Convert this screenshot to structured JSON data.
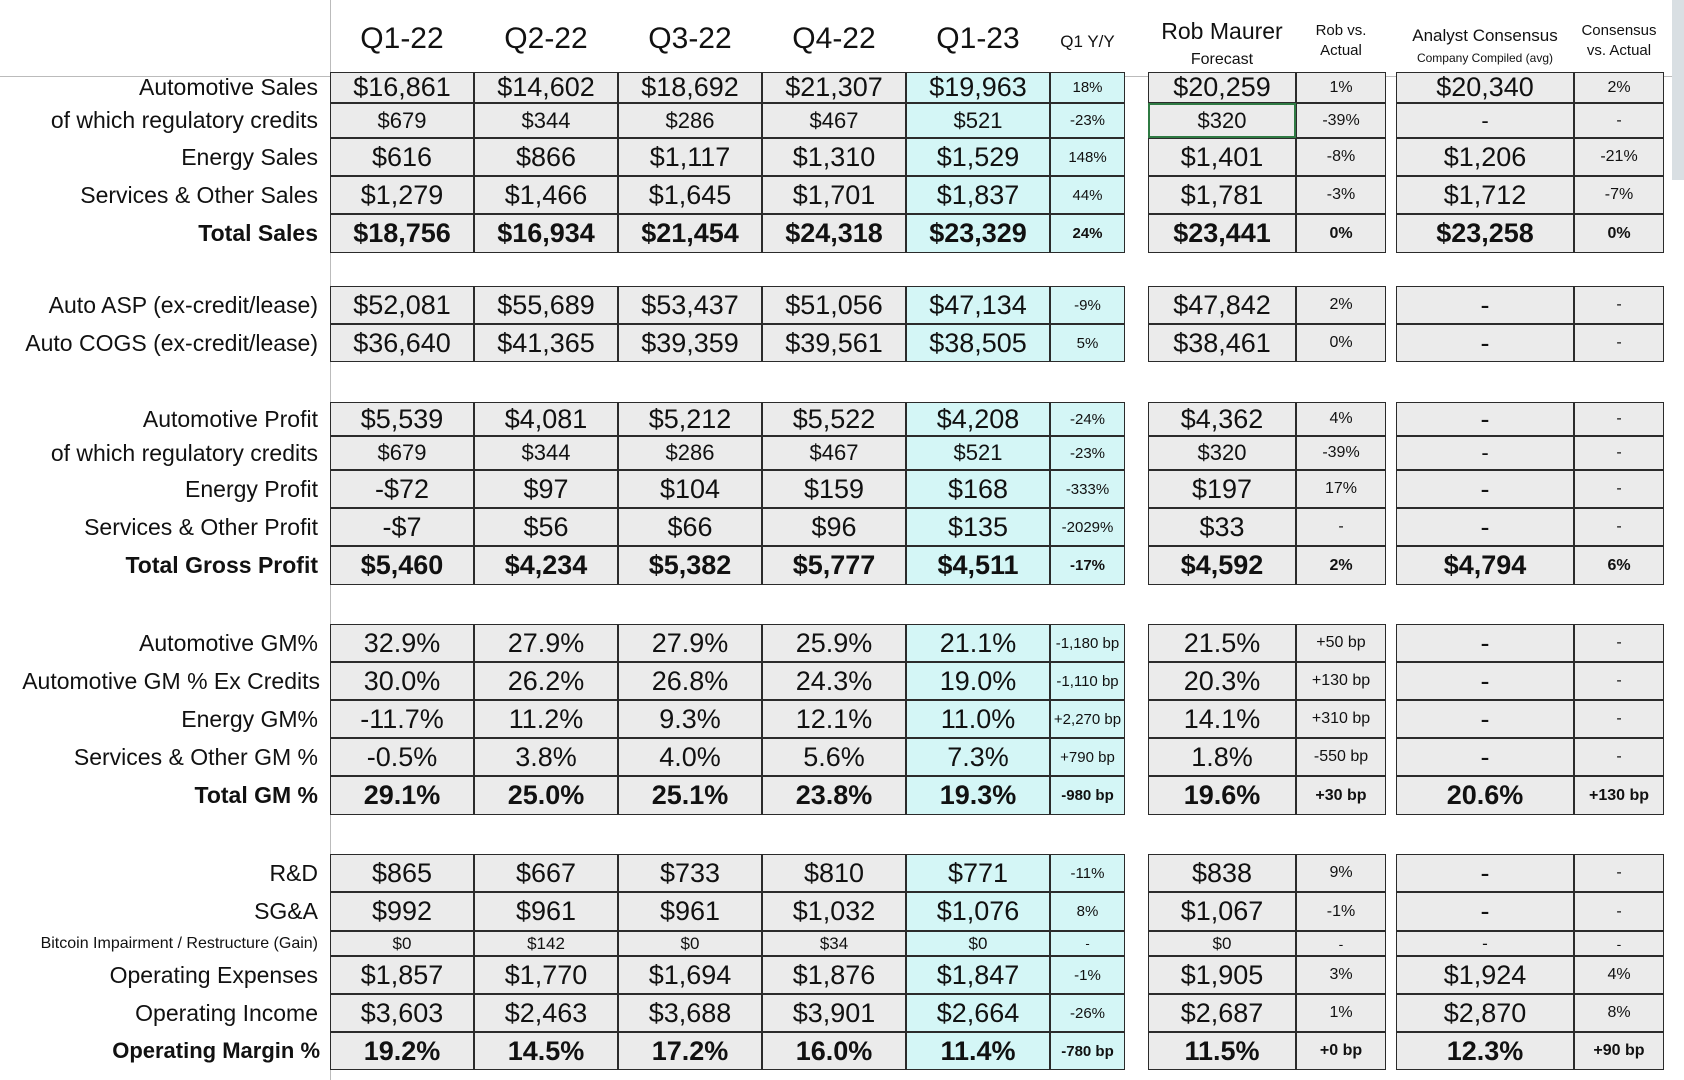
{
  "header": {
    "quarters": [
      "Q1-22",
      "Q2-22",
      "Q3-22",
      "Q4-22",
      "Q1-23"
    ],
    "yoy": "Q1 Y/Y",
    "forecast_name": "Rob Maurer",
    "forecast_sub": "Forecast",
    "rob_vs_1": "Rob vs.",
    "rob_vs_2": "Actual",
    "consensus_title": "Analyst Consensus",
    "consensus_sub": "Company Compiled (avg)",
    "cons_vs_1": "Consensus",
    "cons_vs_2": "vs. Actual"
  },
  "rows": [
    {
      "label": "Automotive Sales",
      "q": [
        "$16,861",
        "$14,602",
        "$18,692",
        "$21,307",
        "$19,963"
      ],
      "yoy": "18%",
      "rob": "$20,259",
      "robvs": "1%",
      "cons": "$20,340",
      "consvs": "2%"
    },
    {
      "label": "of which regulatory credits",
      "q": [
        "$679",
        "$344",
        "$286",
        "$467",
        "$521"
      ],
      "yoy": "-23%",
      "rob": "$320",
      "robvs": "-39%",
      "cons": "-",
      "consvs": "-"
    },
    {
      "label": "Energy Sales",
      "q": [
        "$616",
        "$866",
        "$1,117",
        "$1,310",
        "$1,529"
      ],
      "yoy": "148%",
      "rob": "$1,401",
      "robvs": "-8%",
      "cons": "$1,206",
      "consvs": "-21%"
    },
    {
      "label": "Services & Other Sales",
      "q": [
        "$1,279",
        "$1,466",
        "$1,645",
        "$1,701",
        "$1,837"
      ],
      "yoy": "44%",
      "rob": "$1,781",
      "robvs": "-3%",
      "cons": "$1,712",
      "consvs": "-7%"
    },
    {
      "label": "Total Sales",
      "q": [
        "$18,756",
        "$16,934",
        "$21,454",
        "$24,318",
        "$23,329"
      ],
      "yoy": "24%",
      "rob": "$23,441",
      "robvs": "0%",
      "cons": "$23,258",
      "consvs": "0%"
    },
    {
      "label": "Auto ASP (ex-credit/lease)",
      "q": [
        "$52,081",
        "$55,689",
        "$53,437",
        "$51,056",
        "$47,134"
      ],
      "yoy": "-9%",
      "rob": "$47,842",
      "robvs": "2%",
      "cons": "-",
      "consvs": "-"
    },
    {
      "label": "Auto COGS (ex-credit/lease)",
      "q": [
        "$36,640",
        "$41,365",
        "$39,359",
        "$39,561",
        "$38,505"
      ],
      "yoy": "5%",
      "rob": "$38,461",
      "robvs": "0%",
      "cons": "-",
      "consvs": "-"
    },
    {
      "label": "Automotive Profit",
      "q": [
        "$5,539",
        "$4,081",
        "$5,212",
        "$5,522",
        "$4,208"
      ],
      "yoy": "-24%",
      "rob": "$4,362",
      "robvs": "4%",
      "cons": "-",
      "consvs": "-"
    },
    {
      "label": "of which regulatory credits",
      "q": [
        "$679",
        "$344",
        "$286",
        "$467",
        "$521"
      ],
      "yoy": "-23%",
      "rob": "$320",
      "robvs": "-39%",
      "cons": "-",
      "consvs": "-"
    },
    {
      "label": "Energy Profit",
      "q": [
        "-$72",
        "$97",
        "$104",
        "$159",
        "$168"
      ],
      "yoy": "-333%",
      "rob": "$197",
      "robvs": "17%",
      "cons": "-",
      "consvs": "-"
    },
    {
      "label": "Services & Other Profit",
      "q": [
        "-$7",
        "$56",
        "$66",
        "$96",
        "$135"
      ],
      "yoy": "-2029%",
      "rob": "$33",
      "robvs": "-",
      "cons": "-",
      "consvs": "-"
    },
    {
      "label": "Total Gross Profit",
      "q": [
        "$5,460",
        "$4,234",
        "$5,382",
        "$5,777",
        "$4,511"
      ],
      "yoy": "-17%",
      "rob": "$4,592",
      "robvs": "2%",
      "cons": "$4,794",
      "consvs": "6%"
    },
    {
      "label": "Automotive GM%",
      "q": [
        "32.9%",
        "27.9%",
        "27.9%",
        "25.9%",
        "21.1%"
      ],
      "yoy": "-1,180 bp",
      "rob": "21.5%",
      "robvs": "+50 bp",
      "cons": "-",
      "consvs": "-"
    },
    {
      "label": "Automotive GM % Ex Credits",
      "q": [
        "30.0%",
        "26.2%",
        "26.8%",
        "24.3%",
        "19.0%"
      ],
      "yoy": "-1,110 bp",
      "rob": "20.3%",
      "robvs": "+130 bp",
      "cons": "-",
      "consvs": "-"
    },
    {
      "label": "Energy GM%",
      "q": [
        "-11.7%",
        "11.2%",
        "9.3%",
        "12.1%",
        "11.0%"
      ],
      "yoy": "+2,270 bp",
      "rob": "14.1%",
      "robvs": "+310 bp",
      "cons": "-",
      "consvs": "-"
    },
    {
      "label": "Services & Other GM %",
      "q": [
        "-0.5%",
        "3.8%",
        "4.0%",
        "5.6%",
        "7.3%"
      ],
      "yoy": "+790 bp",
      "rob": "1.8%",
      "robvs": "-550 bp",
      "cons": "-",
      "consvs": "-"
    },
    {
      "label": "Total GM %",
      "q": [
        "29.1%",
        "25.0%",
        "25.1%",
        "23.8%",
        "19.3%"
      ],
      "yoy": "-980 bp",
      "rob": "19.6%",
      "robvs": "+30 bp",
      "cons": "20.6%",
      "consvs": "+130 bp"
    },
    {
      "label": "R&D",
      "q": [
        "$865",
        "$667",
        "$733",
        "$810",
        "$771"
      ],
      "yoy": "-11%",
      "rob": "$838",
      "robvs": "9%",
      "cons": "-",
      "consvs": "-"
    },
    {
      "label": "SG&A",
      "q": [
        "$992",
        "$961",
        "$961",
        "$1,032",
        "$1,076"
      ],
      "yoy": "8%",
      "rob": "$1,067",
      "robvs": "-1%",
      "cons": "-",
      "consvs": "-"
    },
    {
      "label": "Bitcoin Impairment / Restructure (Gain)",
      "q": [
        "$0",
        "$142",
        "$0",
        "$34",
        "$0"
      ],
      "yoy": "-",
      "rob": "$0",
      "robvs": "-",
      "cons": "-",
      "consvs": "-"
    },
    {
      "label": "Operating Expenses",
      "q": [
        "$1,857",
        "$1,770",
        "$1,694",
        "$1,876",
        "$1,847"
      ],
      "yoy": "-1%",
      "rob": "$1,905",
      "robvs": "3%",
      "cons": "$1,924",
      "consvs": "4%"
    },
    {
      "label": "Operating Income",
      "q": [
        "$3,603",
        "$2,463",
        "$3,688",
        "$3,901",
        "$2,664"
      ],
      "yoy": "-26%",
      "rob": "$2,687",
      "robvs": "1%",
      "cons": "$2,870",
      "consvs": "8%"
    },
    {
      "label": "Operating Margin %",
      "q": [
        "19.2%",
        "14.5%",
        "17.2%",
        "16.0%",
        "11.4%"
      ],
      "yoy": "-780 bp",
      "rob": "11.5%",
      "robvs": "+0 bp",
      "cons": "12.3%",
      "consvs": "+90 bp"
    }
  ]
}
